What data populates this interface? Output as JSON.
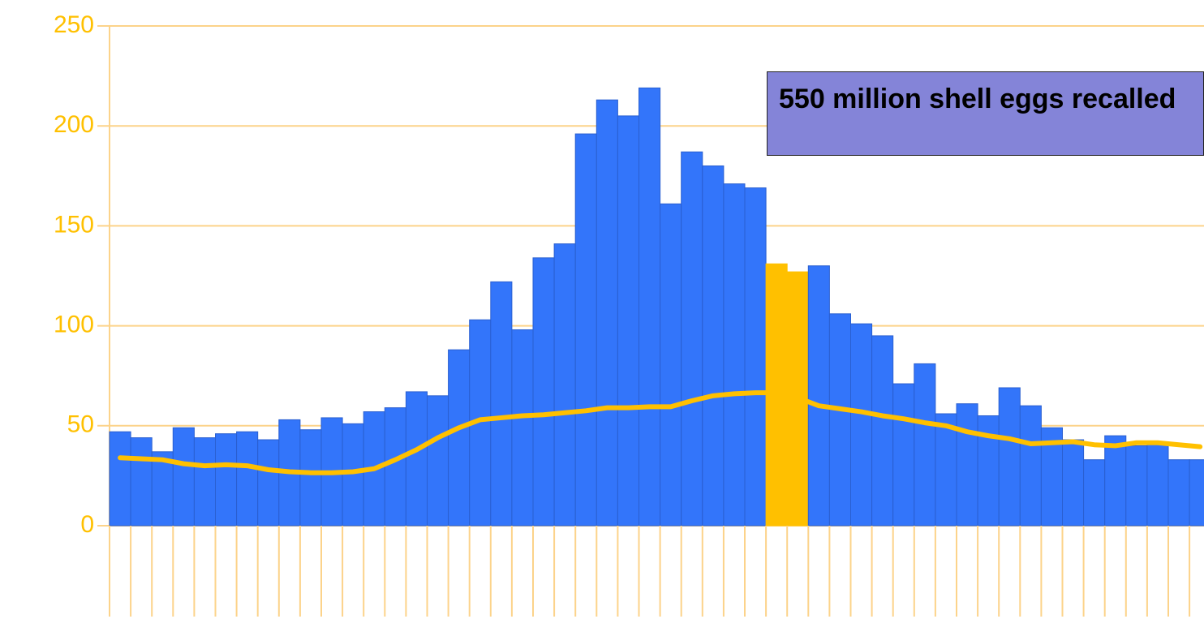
{
  "chart_data": {
    "type": "bar",
    "annotation": "550 million shell eggs recalled",
    "categories": [
      null,
      null,
      null,
      null,
      null,
      null,
      null,
      null,
      null,
      null,
      null,
      null,
      null,
      null,
      null,
      null,
      null,
      null,
      null,
      null,
      null,
      null,
      null,
      null,
      null,
      null,
      null,
      null,
      null,
      null,
      null,
      null,
      null,
      null,
      null,
      null,
      null,
      null,
      null,
      null,
      null,
      null,
      null,
      null,
      null,
      null,
      null,
      null,
      null,
      null,
      null,
      null
    ],
    "values": [
      47,
      44,
      37,
      49,
      44,
      46,
      47,
      43,
      53,
      48,
      54,
      51,
      57,
      59,
      67,
      65,
      88,
      103,
      122,
      98,
      134,
      141,
      196,
      213,
      205,
      219,
      161,
      187,
      180,
      171,
      169,
      131,
      127,
      130,
      106,
      101,
      95,
      71,
      81,
      56,
      61,
      55,
      69,
      60,
      49,
      43,
      33,
      45,
      40,
      42,
      33,
      33
    ],
    "colors": [
      "#3375fa",
      "#3375fa",
      "#3375fa",
      "#3375fa",
      "#3375fa",
      "#3375fa",
      "#3375fa",
      "#3375fa",
      "#3375fa",
      "#3375fa",
      "#3375fa",
      "#3375fa",
      "#3375fa",
      "#3375fa",
      "#3375fa",
      "#3375fa",
      "#3375fa",
      "#3375fa",
      "#3375fa",
      "#3375fa",
      "#3375fa",
      "#3375fa",
      "#3375fa",
      "#3375fa",
      "#3375fa",
      "#3375fa",
      "#3375fa",
      "#3375fa",
      "#3375fa",
      "#3375fa",
      "#3375fa",
      "#ffc000",
      "#ffc000",
      "#3375fa",
      "#3375fa",
      "#3375fa",
      "#3375fa",
      "#3375fa",
      "#3375fa",
      "#3375fa",
      "#3375fa",
      "#3375fa",
      "#3375fa",
      "#3375fa",
      "#3375fa",
      "#3375fa",
      "#3375fa",
      "#3375fa",
      "#3375fa",
      "#3375fa",
      "#3375fa",
      "#3375fa"
    ],
    "line_values": [
      34,
      33.5,
      33,
      31,
      30,
      30.5,
      30,
      28,
      27,
      26.5,
      26.5,
      27,
      28.5,
      33,
      38,
      44,
      49,
      53,
      54,
      55,
      55.5,
      56.5,
      57.5,
      59,
      59,
      59.5,
      59.5,
      62.5,
      65,
      66,
      66.5,
      66.5,
      64,
      60,
      58.5,
      57,
      55,
      53.5,
      51.5,
      50,
      47,
      45,
      43.5,
      41,
      41.5,
      42,
      40.5,
      40,
      41.5,
      41.5,
      40.5,
      39.5
    ],
    "line_color": "#ffc000",
    "ylim": [
      0,
      250
    ],
    "yticks": [
      0,
      50,
      100,
      150,
      200,
      250
    ],
    "grid": true
  }
}
